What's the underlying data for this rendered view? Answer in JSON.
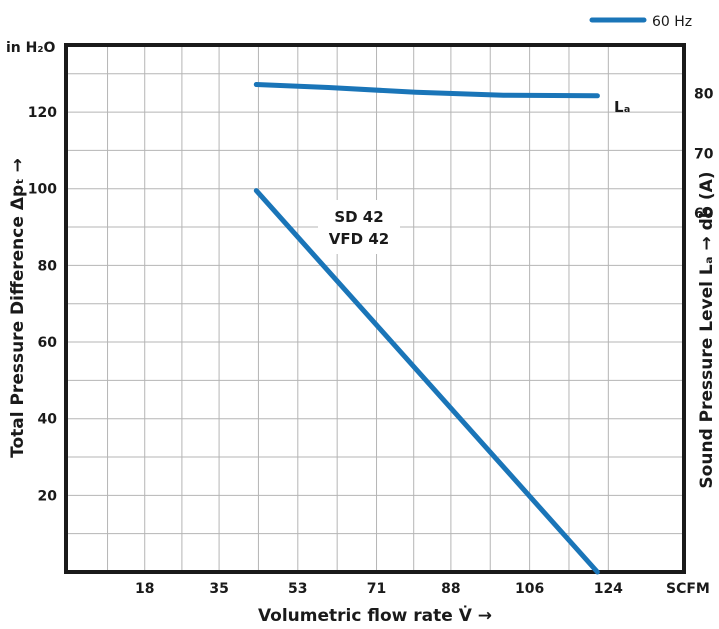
{
  "chart_data": {
    "type": "line",
    "xlabel": "Volumetric flow rate V̇ →",
    "ylabel": "Total Pressure Difference Δpₜ →",
    "y2label": "Sound Pressure Level Lₐ → db (A)",
    "x_unit": "SCFM",
    "y_unit": "in H₂O",
    "xlim": [
      0,
      141.3
    ],
    "ylim": [
      0,
      137.5
    ],
    "y2lim": [
      0,
      88.1
    ],
    "x_ticks": [
      18,
      35,
      53,
      71,
      88,
      106,
      124
    ],
    "y_ticks": [
      20,
      40,
      60,
      80,
      100,
      120
    ],
    "y2_ticks": [
      60,
      70,
      80
    ],
    "grid": true,
    "legend": {
      "position": "top-right",
      "entries": [
        {
          "label": "60 Hz",
          "color": "#1a75b8"
        }
      ]
    },
    "series": [
      {
        "axis": "left",
        "x": [
          43.5,
          121.5
        ],
        "y": [
          99.5,
          0
        ]
      },
      {
        "axis": "right",
        "x": [
          43.5,
          60,
          80,
          100,
          121.5
        ],
        "y": [
          81.5,
          81.0,
          80.2,
          79.7,
          79.6
        ]
      }
    ],
    "annotations": [
      {
        "text_line1": "SD 42",
        "text_line2": "VFD 42"
      },
      {
        "text": "Lₐ"
      }
    ]
  }
}
